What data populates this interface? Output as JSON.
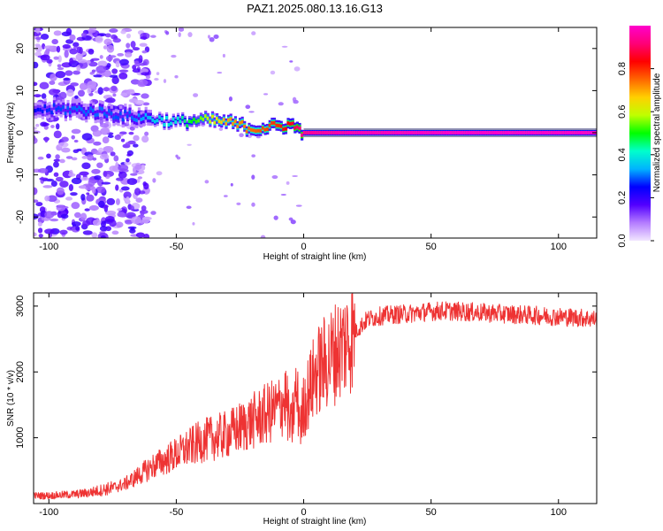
{
  "title": "PAZ1.2025.080.13.16.G13",
  "chart_data": [
    {
      "type": "heatmap",
      "xlabel": "Height of straight line (km)",
      "ylabel": "Frequency (Hz)",
      "xlim": [
        -106,
        115
      ],
      "ylim": [
        -25,
        25
      ],
      "xticks": [
        -100,
        -50,
        0,
        50,
        100
      ],
      "yticks": [
        -20,
        -10,
        0,
        10,
        20
      ],
      "colorbar": {
        "label": "Normalized spectral amplitude",
        "range": [
          0,
          1
        ],
        "ticks": [
          0.0,
          0.2,
          0.4,
          0.6,
          0.8
        ],
        "colors": [
          "#f2e6ff",
          "#b47cff",
          "#5200ff",
          "#0000ff",
          "#00b3ff",
          "#00ffcc",
          "#00ff00",
          "#bfff00",
          "#ffd000",
          "#ff6600",
          "#ff0000",
          "#ff0077",
          "#ff00cc"
        ]
      },
      "ridge": [
        {
          "x": -105,
          "y": 5.5,
          "amp": 0.25
        },
        {
          "x": -90,
          "y": 5.5,
          "amp": 0.3
        },
        {
          "x": -80,
          "y": 5,
          "amp": 0.3
        },
        {
          "x": -70,
          "y": 4,
          "amp": 0.28
        },
        {
          "x": -60,
          "y": 3.5,
          "amp": 0.35
        },
        {
          "x": -50,
          "y": 2.5,
          "amp": 0.4
        },
        {
          "x": -40,
          "y": 3,
          "amp": 0.55
        },
        {
          "x": -30,
          "y": 2.5,
          "amp": 0.7
        },
        {
          "x": -20,
          "y": 1,
          "amp": 0.75
        },
        {
          "x": -10,
          "y": 1.5,
          "amp": 0.8
        },
        {
          "x": -5,
          "y": 2,
          "amp": 0.85
        },
        {
          "x": 0,
          "y": 0,
          "amp": 0.95
        },
        {
          "x": 20,
          "y": 0,
          "amp": 0.98
        },
        {
          "x": 60,
          "y": 0,
          "amp": 1.0
        },
        {
          "x": 115,
          "y": 0,
          "amp": 1.0
        }
      ]
    },
    {
      "type": "line",
      "xlabel": "Height of straight line (km)",
      "ylabel": "SNR (10 * v/v)",
      "xlim": [
        -106,
        115
      ],
      "ylim": [
        0,
        3200
      ],
      "xticks": [
        -100,
        -50,
        0,
        50,
        100
      ],
      "yticks": [
        1000,
        2000,
        3000
      ],
      "color": "#ee3333",
      "x": [
        -106,
        -100,
        -95,
        -90,
        -85,
        -80,
        -75,
        -70,
        -65,
        -60,
        -55,
        -50,
        -45,
        -40,
        -35,
        -30,
        -25,
        -20,
        -15,
        -10,
        -7,
        -5,
        -3,
        -1,
        0,
        2,
        5,
        10,
        15,
        20,
        25,
        30,
        35,
        40,
        45,
        50,
        55,
        60,
        65,
        70,
        75,
        80,
        85,
        90,
        95,
        100,
        105,
        110,
        115
      ],
      "y": [
        120,
        120,
        130,
        140,
        160,
        200,
        240,
        300,
        420,
        550,
        650,
        750,
        850,
        950,
        1000,
        1050,
        1150,
        1250,
        1350,
        1450,
        1600,
        1100,
        1700,
        1200,
        1500,
        1700,
        2000,
        2200,
        2400,
        2600,
        2800,
        2850,
        2870,
        2880,
        2900,
        2920,
        2930,
        2920,
        2910,
        2900,
        2890,
        2880,
        2870,
        2860,
        2850,
        2840,
        2830,
        2820,
        2800
      ]
    }
  ]
}
